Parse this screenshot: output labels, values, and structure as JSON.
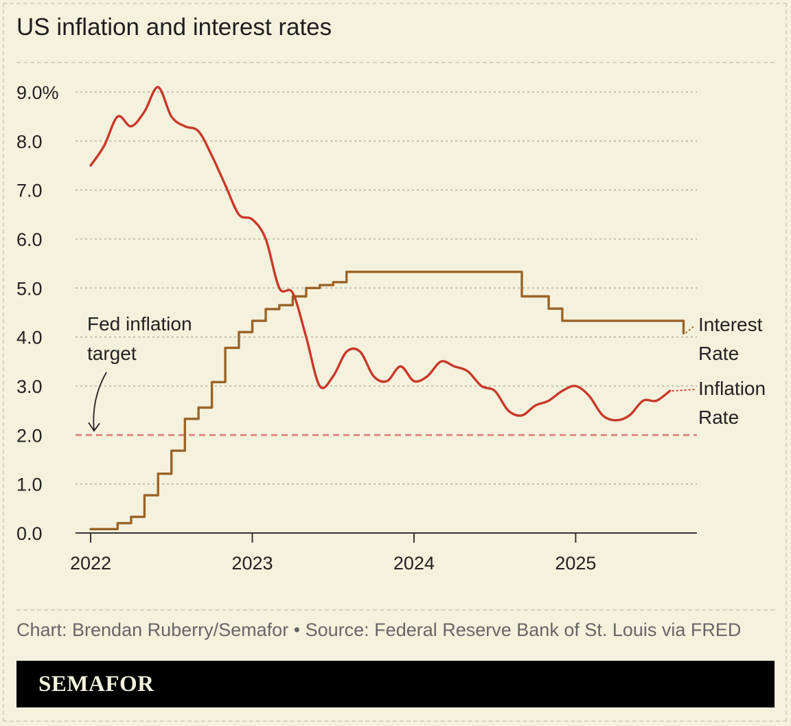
{
  "header": {
    "title": "US inflation and interest rates"
  },
  "footer": {
    "credit": "Chart: Brendan Ruberry/Semafor • Source: Federal Reserve Bank of St. Louis via FRED",
    "brand": "SEMAFOR"
  },
  "chart_data": {
    "type": "line",
    "title": "US inflation and interest rates",
    "xlabel": "",
    "ylabel": "",
    "xlim": [
      2022,
      2025.75
    ],
    "ylim": [
      0,
      9
    ],
    "x_ticks": [
      "2022",
      "2023",
      "2024",
      "2025"
    ],
    "y_ticks": [
      "0.0",
      "1.0",
      "2.0",
      "3.0",
      "4.0",
      "5.0",
      "6.0",
      "7.0",
      "8.0",
      "9.0%"
    ],
    "grid": true,
    "colors": {
      "inflation": "#c8382a",
      "interest": "#9a6326",
      "target": "#e08c83",
      "grid": "#b5b29f",
      "axis": "#333333"
    },
    "reference_line": {
      "y": 2.0,
      "label": "Fed inflation target"
    },
    "series": [
      {
        "name": "Inflation Rate",
        "key": "inflation",
        "shape": "smooth",
        "x": [
          2022.0,
          2022.083,
          2022.167,
          2022.25,
          2022.333,
          2022.417,
          2022.5,
          2022.583,
          2022.667,
          2022.75,
          2022.833,
          2022.917,
          2023.0,
          2023.083,
          2023.167,
          2023.25,
          2023.333,
          2023.417,
          2023.5,
          2023.583,
          2023.667,
          2023.75,
          2023.833,
          2023.917,
          2024.0,
          2024.083,
          2024.167,
          2024.25,
          2024.333,
          2024.417,
          2024.5,
          2024.583,
          2024.667,
          2024.75,
          2024.833,
          2024.917,
          2025.0,
          2025.083,
          2025.167,
          2025.25,
          2025.333,
          2025.417,
          2025.5,
          2025.583
        ],
        "values": [
          7.5,
          7.9,
          8.5,
          8.3,
          8.6,
          9.1,
          8.5,
          8.3,
          8.2,
          7.7,
          7.1,
          6.5,
          6.4,
          6.0,
          5.0,
          4.9,
          4.0,
          3.0,
          3.2,
          3.7,
          3.7,
          3.2,
          3.1,
          3.4,
          3.1,
          3.2,
          3.5,
          3.4,
          3.3,
          3.0,
          2.9,
          2.5,
          2.4,
          2.6,
          2.7,
          2.9,
          3.0,
          2.8,
          2.4,
          2.3,
          2.4,
          2.7,
          2.7,
          2.9
        ]
      },
      {
        "name": "Interest Rate",
        "key": "interest",
        "shape": "step",
        "x": [
          2022.0,
          2022.083,
          2022.167,
          2022.25,
          2022.333,
          2022.417,
          2022.5,
          2022.583,
          2022.667,
          2022.75,
          2022.833,
          2022.917,
          2023.0,
          2023.083,
          2023.167,
          2023.25,
          2023.333,
          2023.417,
          2023.5,
          2023.583,
          2023.667,
          2023.75,
          2023.833,
          2023.917,
          2024.0,
          2024.083,
          2024.167,
          2024.25,
          2024.333,
          2024.417,
          2024.5,
          2024.583,
          2024.667,
          2024.75,
          2024.833,
          2024.917,
          2025.0,
          2025.083,
          2025.167,
          2025.25,
          2025.333,
          2025.417,
          2025.5,
          2025.583,
          2025.667
        ],
        "values": [
          0.08,
          0.08,
          0.2,
          0.33,
          0.77,
          1.21,
          1.68,
          2.33,
          2.56,
          3.08,
          3.78,
          4.1,
          4.33,
          4.57,
          4.65,
          4.83,
          5.0,
          5.06,
          5.12,
          5.33,
          5.33,
          5.33,
          5.33,
          5.33,
          5.33,
          5.33,
          5.33,
          5.33,
          5.33,
          5.33,
          5.33,
          5.33,
          4.83,
          4.83,
          4.58,
          4.33,
          4.33,
          4.33,
          4.33,
          4.33,
          4.33,
          4.33,
          4.33,
          4.33,
          4.08
        ]
      }
    ],
    "legend": [
      {
        "key": "interest",
        "lines": [
          "Interest",
          "Rate"
        ]
      },
      {
        "key": "inflation",
        "lines": [
          "Inflation",
          "Rate"
        ]
      }
    ],
    "annotations": [
      {
        "text": [
          "Fed inflation",
          "target"
        ],
        "points_to_y": 2.0
      }
    ]
  }
}
